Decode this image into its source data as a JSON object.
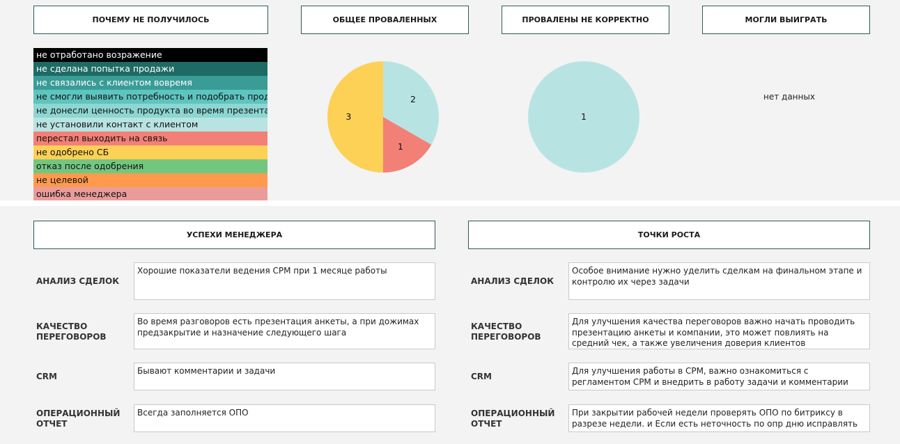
{
  "headers": {
    "why_failed": "ПОЧЕМУ НЕ ПОЛУЧИЛОСЬ",
    "total_failed": "ОБЩЕЕ ПРОВАЛЕННЫХ",
    "failed_incorrectly": "ПРОВАЛЕНЫ НЕ КОРРЕКТНО",
    "could_win": "МОГЛИ ВЫИГРАТЬ",
    "manager_success": "УСПЕХИ МЕНЕДЖЕРА",
    "growth_points": "ТОЧКИ РОСТА"
  },
  "legend": [
    {
      "label": "не отработано возражение",
      "color": "#000000",
      "text_color": "#ffffff"
    },
    {
      "label": "не сделана попытка продажи",
      "color": "#1e6b65",
      "text_color": "#ffffff"
    },
    {
      "label": "не связались с клиентом вовремя",
      "color": "#3a9c97",
      "text_color": "#ffffff"
    },
    {
      "label": "не смогли выявить потребность и подобрать продукт",
      "color": "#5ec4bf",
      "text_color": "#111111"
    },
    {
      "label": "не донесли ценность продукта во время презентации",
      "color": "#8dd6d2",
      "text_color": "#111111"
    },
    {
      "label": "не установили контакт с клиентом",
      "color": "#b7e4e2",
      "text_color": "#111111"
    },
    {
      "label": "перестал выходить на связь",
      "color": "#f28077",
      "text_color": "#111111"
    },
    {
      "label": "не одобрено СБ",
      "color": "#fdd056",
      "text_color": "#111111"
    },
    {
      "label": "отказ после одобрения",
      "color": "#73c680",
      "text_color": "#111111"
    },
    {
      "label": "не целевой",
      "color": "#fe9a4d",
      "text_color": "#111111"
    },
    {
      "label": "ошибка менеджера",
      "color": "#ea9c9b",
      "text_color": "#111111"
    }
  ],
  "chart_data": [
    {
      "type": "pie",
      "title": "ОБЩЕЕ ПРОВАЛЕННЫХ",
      "slices": [
        {
          "category": "не установили контакт с клиентом",
          "value": 2,
          "label": "2",
          "color": "#b7e4e2"
        },
        {
          "category": "перестал выходить на связь",
          "value": 1,
          "label": "1",
          "color": "#f28077"
        },
        {
          "category": "не одобрено СБ",
          "value": 3,
          "label": "3",
          "color": "#fdd056"
        }
      ]
    },
    {
      "type": "pie",
      "title": "ПРОВАЛЕНЫ НЕ КОРРЕКТНО",
      "slices": [
        {
          "category": "не установили контакт с клиентом",
          "value": 1,
          "label": "1",
          "color": "#b7e4e2"
        }
      ]
    }
  ],
  "could_win_nodata": "нет данных",
  "rows": [
    {
      "label": "АНАЛИЗ СДЕЛОК",
      "success": "Хорошие показатели ведения СРМ при 1 месяце работы",
      "growth": "Особое внимание нужно уделить сделкам на финальном этапе и контролю их через задачи"
    },
    {
      "label": "КАЧЕСТВО ПЕРЕГОВОРОВ",
      "success": "Во время разговоров есть презентация анкеты, а при дожимах предзакрытие и назначение следующего шага",
      "growth": "Для улучшения качества переговоров важно начать проводить презентацию анкеты и компании, это может повлиять на средний чек, а также увеличения доверия клиентов"
    },
    {
      "label": "CRM",
      "success": "Бывают комментарии и задачи",
      "growth": "Для улучшения работы в СРМ, важно ознакомиться с регламентом СРМ и внедрить в работу задачи и комментарии"
    },
    {
      "label": "ОПЕРАЦИОННЫЙ ОТЧЕТ",
      "success": "Всегда заполняется ОПО",
      "growth": "При закрытии рабочей недели проверять ОПО по битриксу в разрезе недели. и Если есть неточность по опр дню исправлять ее"
    }
  ]
}
